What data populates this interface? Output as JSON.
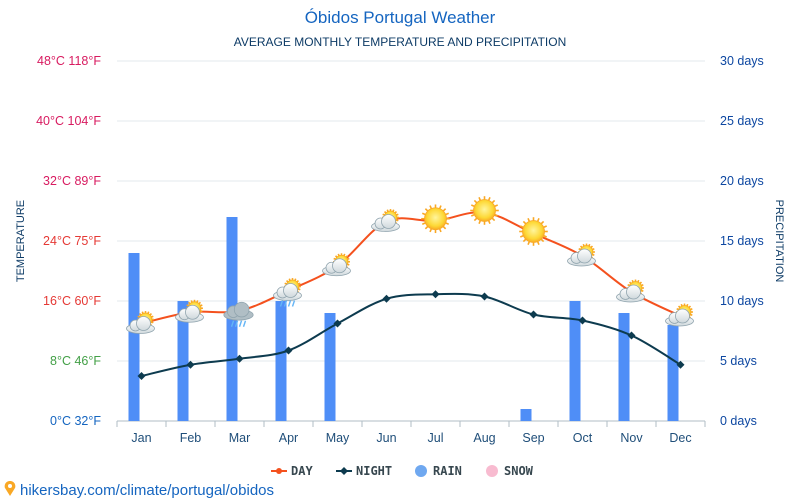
{
  "chart_data": {
    "type": "combo-line-bar",
    "title": "Óbidos Portugal Weather",
    "subtitle": "AVERAGE MONTHLY TEMPERATURE AND PRECIPITATION",
    "ylabel_left": "TEMPERATURE",
    "ylabel_right": "PRECIPITATION",
    "categories": [
      "Jan",
      "Feb",
      "Mar",
      "Apr",
      "May",
      "Jun",
      "Jul",
      "Aug",
      "Sep",
      "Oct",
      "Nov",
      "Dec"
    ],
    "left_axis": {
      "ylim": [
        0,
        48
      ],
      "ticks": [
        {
          "value": 0,
          "label": "0°C 32°F",
          "color": "#1565c0"
        },
        {
          "value": 8,
          "label": "8°C 46°F",
          "color": "#43a047"
        },
        {
          "value": 16,
          "label": "16°C 60°F",
          "color": "#e53935"
        },
        {
          "value": 24,
          "label": "24°C 75°F",
          "color": "#e53935"
        },
        {
          "value": 32,
          "label": "32°C 89°F",
          "color": "#d81b60"
        },
        {
          "value": 40,
          "label": "40°C 104°F",
          "color": "#d81b60"
        },
        {
          "value": 48,
          "label": "48°C 118°F",
          "color": "#d81b60"
        }
      ]
    },
    "right_axis": {
      "ylim": [
        0,
        30
      ],
      "ticks": [
        {
          "value": 0,
          "label": "0 days"
        },
        {
          "value": 5,
          "label": "5 days"
        },
        {
          "value": 10,
          "label": "10 days"
        },
        {
          "value": 15,
          "label": "15 days"
        },
        {
          "value": 20,
          "label": "20 days"
        },
        {
          "value": 25,
          "label": "25 days"
        },
        {
          "value": 30,
          "label": "30 days"
        }
      ]
    },
    "series": [
      {
        "name": "DAY",
        "type": "line",
        "color": "#f4511e",
        "values": [
          13,
          14.5,
          14.7,
          17.4,
          20.7,
          26.6,
          26.7,
          27.8,
          25,
          22,
          17.2,
          14
        ]
      },
      {
        "name": "NIGHT",
        "type": "line",
        "color": "#0d3b4f",
        "values": [
          6,
          7.5,
          8.3,
          9.4,
          13,
          16.3,
          16.9,
          16.6,
          14.2,
          13.4,
          11.4,
          7.5
        ]
      },
      {
        "name": "RAIN",
        "type": "bar",
        "color": "#4f8ef7",
        "axis": "right",
        "values": [
          14,
          10,
          17,
          10,
          9,
          0,
          0,
          0,
          1,
          10,
          9,
          8
        ]
      },
      {
        "name": "SNOW",
        "type": "bar",
        "color": "#f8bbd0",
        "axis": "right",
        "values": [
          0,
          0,
          0,
          0,
          0,
          0,
          0,
          0,
          0,
          0,
          0,
          0
        ]
      }
    ],
    "weather_icons": [
      "sun-cloud",
      "sun-cloud",
      "rain-cloud",
      "sun-cloud-rain",
      "sun-cloud",
      "sun-cloud",
      "sun",
      "sun",
      "sun",
      "sun-cloud",
      "sun-cloud",
      "sun-cloud"
    ],
    "legend": [
      {
        "label": "DAY",
        "color": "#f4511e",
        "symbol": "line-dot"
      },
      {
        "label": "NIGHT",
        "color": "#0d3b4f",
        "symbol": "line-diamond"
      },
      {
        "label": "RAIN",
        "color": "#6fa8f0",
        "symbol": "circle"
      },
      {
        "label": "SNOW",
        "color": "#f8bbd0",
        "symbol": "circle"
      }
    ],
    "footer": "hikersbay.com/climate/portugal/obidos"
  }
}
